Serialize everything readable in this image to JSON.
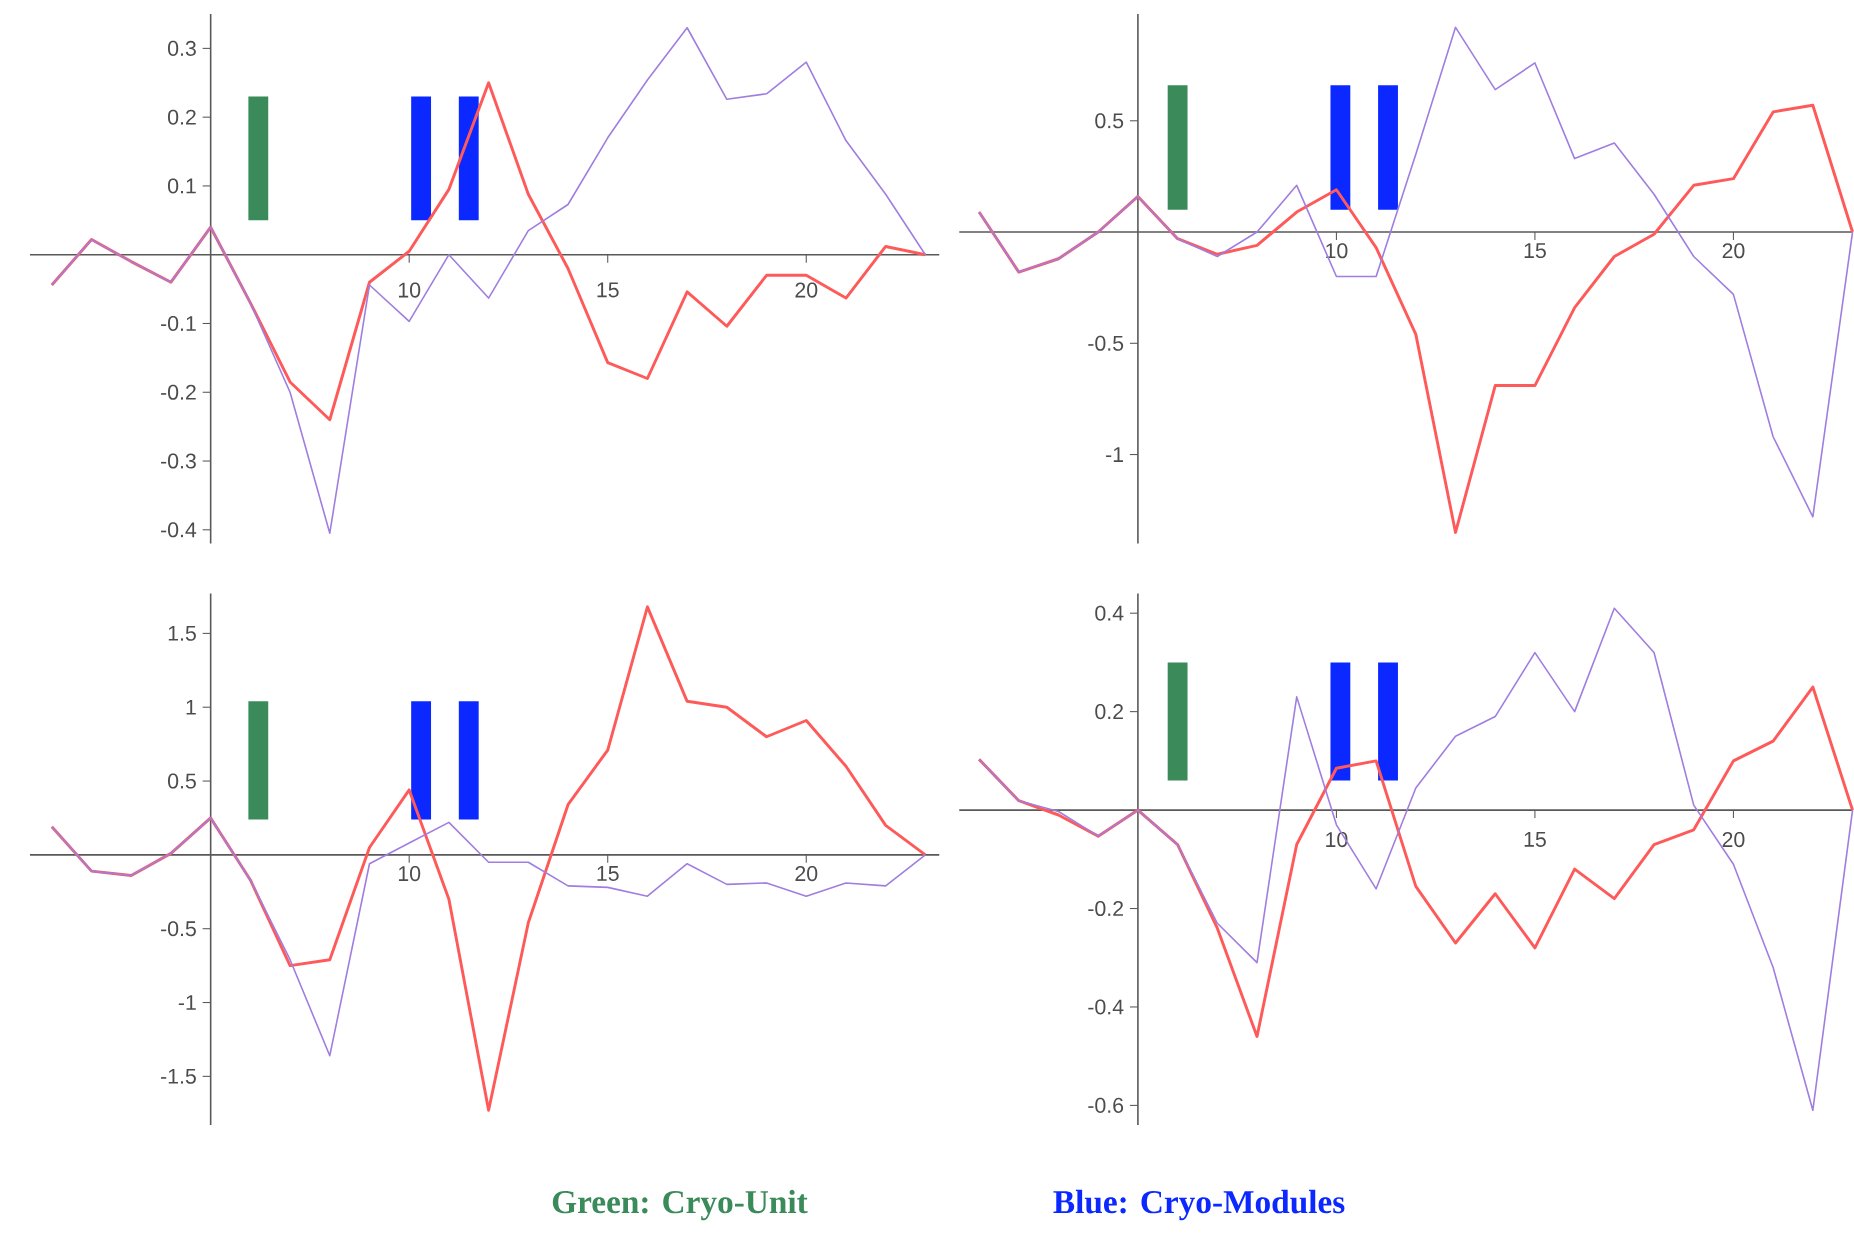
{
  "chart_data": [
    {
      "type": "line",
      "x": [
        1,
        2,
        3,
        4,
        5,
        6,
        7,
        8,
        9,
        10,
        11,
        12,
        13,
        14,
        15,
        16,
        17,
        18,
        19,
        20,
        21,
        22,
        23
      ],
      "xlim": [
        0.45,
        23.35
      ],
      "ylim": [
        -0.42,
        0.35
      ],
      "xticks": [
        10,
        15,
        20
      ],
      "yticks": [
        -0.4,
        -0.3,
        -0.2,
        -0.1,
        0.1,
        0.2,
        0.3
      ],
      "marker": "none",
      "line_style": "solid",
      "annotations": [
        "Green: Cryo-Unit",
        "Blue: Cryo-Modules"
      ],
      "series": [
        {
          "color": "#a07ee0",
          "values": [
            -0.044,
            0.022,
            -0.01,
            -0.04,
            0.04,
            -0.07,
            -0.2,
            -0.405,
            -0.044,
            -0.097,
            0.0,
            -0.063,
            0.035,
            0.073,
            0.17,
            0.254,
            0.33,
            0.226,
            0.234,
            0.28,
            0.166,
            0.088,
            0.0
          ]
        },
        {
          "color": "#ff5a5a",
          "values": [
            -0.044,
            0.022,
            -0.01,
            -0.04,
            0.04,
            -0.07,
            -0.185,
            -0.24,
            -0.04,
            0.005,
            0.095,
            0.25,
            0.088,
            -0.02,
            -0.157,
            -0.18,
            -0.054,
            -0.104,
            -0.03,
            -0.03,
            -0.063,
            0.012,
            0.0
          ]
        },
        {
          "type": "bar",
          "x": [
            6.2,
            10.3,
            11.5
          ],
          "base": [
            0.05,
            0.05,
            0.05
          ],
          "values": [
            0.18,
            0.18,
            0.18
          ],
          "colors": [
            "#3a8a5a",
            "#0a28ff",
            "#0a28ff"
          ]
        }
      ]
    },
    {
      "type": "line",
      "x": [
        1,
        2,
        3,
        4,
        5,
        6,
        7,
        8,
        9,
        10,
        11,
        12,
        13,
        14,
        15,
        16,
        17,
        18,
        19,
        20,
        21,
        22,
        23
      ],
      "xlim": [
        0.5,
        23
      ],
      "ylim": [
        -1.4,
        0.98
      ],
      "xticks": [
        10,
        15,
        20
      ],
      "yticks": [
        -1,
        -0.5,
        0.5
      ],
      "marker": "none",
      "line_style": "solid",
      "series": [
        {
          "color": "#a07ee0",
          "values": [
            0.09,
            -0.18,
            -0.12,
            0.0,
            0.16,
            -0.03,
            -0.11,
            0.0,
            0.21,
            -0.2,
            -0.2,
            0.35,
            0.92,
            0.64,
            0.76,
            0.33,
            0.4,
            0.17,
            -0.11,
            -0.28,
            -0.92,
            -1.28,
            0.0
          ]
        },
        {
          "color": "#ff5a5a",
          "values": [
            0.09,
            -0.18,
            -0.12,
            0.0,
            0.16,
            -0.03,
            -0.1,
            -0.06,
            0.09,
            0.19,
            -0.07,
            -0.46,
            -1.35,
            -0.69,
            -0.69,
            -0.34,
            -0.11,
            -0.01,
            0.21,
            0.24,
            0.54,
            0.57,
            0.0
          ]
        },
        {
          "type": "bar",
          "x": [
            6.0,
            10.1,
            11.3
          ],
          "base": [
            0.1,
            0.1,
            0.1
          ],
          "values": [
            0.56,
            0.56,
            0.56
          ],
          "colors": [
            "#3a8a5a",
            "#0a28ff",
            "#0a28ff"
          ]
        }
      ]
    },
    {
      "type": "line",
      "x": [
        1,
        2,
        3,
        4,
        5,
        6,
        7,
        8,
        9,
        10,
        11,
        12,
        13,
        14,
        15,
        16,
        17,
        18,
        19,
        20,
        21,
        22,
        23
      ],
      "xlim": [
        0.45,
        23.35
      ],
      "ylim": [
        -1.83,
        1.77
      ],
      "xticks": [
        10,
        15,
        20
      ],
      "yticks": [
        -1.5,
        -1,
        -0.5,
        0.5,
        1,
        1.5
      ],
      "marker": "none",
      "line_style": "solid",
      "series": [
        {
          "color": "#a07ee0",
          "values": [
            0.19,
            -0.11,
            -0.14,
            0.01,
            0.25,
            -0.17,
            -0.71,
            -1.36,
            -0.06,
            0.08,
            0.22,
            -0.05,
            -0.05,
            -0.21,
            -0.22,
            -0.28,
            -0.06,
            -0.2,
            -0.19,
            -0.28,
            -0.19,
            -0.21,
            0.0
          ]
        },
        {
          "color": "#ff5a5a",
          "values": [
            0.19,
            -0.11,
            -0.14,
            0.01,
            0.25,
            -0.17,
            -0.75,
            -0.71,
            0.05,
            0.44,
            -0.3,
            -1.73,
            -0.46,
            0.34,
            0.71,
            1.68,
            1.04,
            1.0,
            0.8,
            0.91,
            0.6,
            0.2,
            0.0
          ]
        },
        {
          "type": "bar",
          "x": [
            6.2,
            10.3,
            11.5
          ],
          "base": [
            0.24,
            0.24,
            0.24
          ],
          "values": [
            0.8,
            0.8,
            0.8
          ],
          "colors": [
            "#3a8a5a",
            "#0a28ff",
            "#0a28ff"
          ]
        }
      ]
    },
    {
      "type": "line",
      "x": [
        1,
        2,
        3,
        4,
        5,
        6,
        7,
        8,
        9,
        10,
        11,
        12,
        13,
        14,
        15,
        16,
        17,
        18,
        19,
        20,
        21,
        22,
        23
      ],
      "xlim": [
        0.5,
        23
      ],
      "ylim": [
        -0.64,
        0.44
      ],
      "xticks": [
        10,
        15,
        20
      ],
      "yticks": [
        -0.6,
        -0.4,
        -0.2,
        0.2,
        0.4
      ],
      "marker": "none",
      "line_style": "solid",
      "series": [
        {
          "color": "#a07ee0",
          "values": [
            0.103,
            0.019,
            -0.003,
            -0.053,
            0.0,
            -0.07,
            -0.23,
            -0.31,
            0.23,
            -0.03,
            -0.16,
            0.045,
            0.15,
            0.19,
            0.32,
            0.2,
            0.41,
            0.32,
            0.01,
            -0.11,
            -0.32,
            -0.61,
            0.0
          ]
        },
        {
          "color": "#ff5a5a",
          "values": [
            0.103,
            0.019,
            -0.01,
            -0.053,
            0.0,
            -0.07,
            -0.24,
            -0.46,
            -0.07,
            0.085,
            0.1,
            -0.155,
            -0.27,
            -0.17,
            -0.28,
            -0.12,
            -0.18,
            -0.07,
            -0.04,
            0.1,
            0.14,
            0.25,
            0.0
          ]
        },
        {
          "type": "bar",
          "x": [
            6.0,
            10.1,
            11.3
          ],
          "base": [
            0.06,
            0.06,
            0.06
          ],
          "values": [
            0.24,
            0.24,
            0.24
          ],
          "colors": [
            "#3a8a5a",
            "#0a28ff",
            "#0a28ff"
          ]
        }
      ]
    }
  ]
}
